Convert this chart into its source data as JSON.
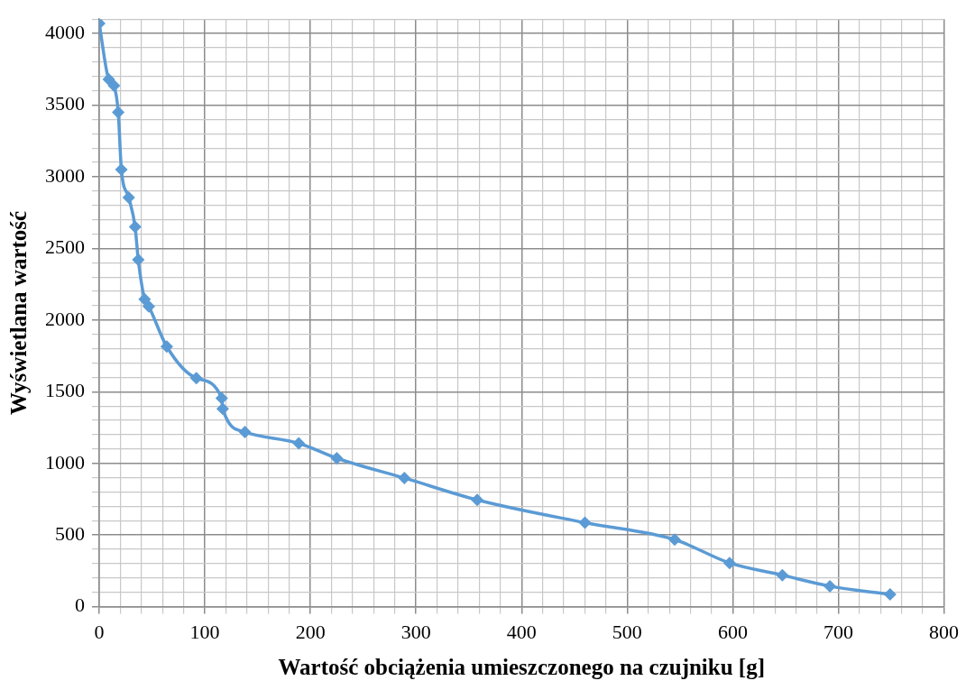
{
  "chart_data": {
    "type": "line",
    "xlabel": "Wartość obciążenia umieszczonego na czujniku [g]",
    "ylabel": "Wyświetlana wartość",
    "series": [
      {
        "color": "#5b9bd5",
        "x": [
          0,
          9,
          14,
          18,
          21,
          28,
          34,
          37,
          43,
          47,
          64,
          92,
          116,
          117,
          138,
          189,
          225,
          289,
          358,
          460,
          545,
          597,
          647,
          692,
          749
        ],
        "values": [
          4070,
          3680,
          3635,
          3450,
          3050,
          2855,
          2650,
          2420,
          2145,
          2095,
          1815,
          1595,
          1455,
          1380,
          1218,
          1140,
          1036,
          898,
          745,
          586,
          468,
          305,
          220,
          143,
          85
        ]
      }
    ],
    "xlim": [
      0,
      800
    ],
    "xticks": [
      0,
      {
        "value": 20,
        "label": null
      },
      {
        "value": 40,
        "label": null
      },
      {
        "value": 60,
        "label": null
      },
      {
        "value": 80,
        "label": null
      },
      100,
      {
        "value": 120,
        "label": null
      },
      {
        "value": 140,
        "label": null
      },
      {
        "value": 160,
        "label": null
      },
      {
        "value": 180,
        "label": null
      },
      200,
      {
        "value": 220,
        "label": null
      },
      {
        "value": 240,
        "label": null
      },
      {
        "value": 260,
        "label": null
      },
      {
        "value": 280,
        "label": null
      },
      300,
      {
        "value": 320,
        "label": null
      },
      {
        "value": 340,
        "label": null
      },
      {
        "value": 360,
        "label": null
      },
      {
        "value": 380,
        "label": null
      },
      400,
      {
        "value": 420,
        "label": null
      },
      {
        "value": 440,
        "label": null
      },
      {
        "value": 460,
        "label": null
      },
      {
        "value": 480,
        "label": null
      },
      500,
      {
        "value": 520,
        "label": null
      },
      {
        "value": 540,
        "label": null
      },
      {
        "value": 560,
        "label": null
      },
      {
        "value": 580,
        "label": null
      },
      600,
      {
        "value": 620,
        "label": null
      },
      {
        "value": 640,
        "label": null
      },
      {
        "value": 660,
        "label": null
      },
      {
        "value": 680,
        "label": null
      },
      700,
      {
        "value": 720,
        "label": null
      },
      {
        "value": 740,
        "label": null
      },
      {
        "value": 760,
        "label": null
      },
      {
        "value": 780,
        "label": null
      },
      800
    ],
    "ylim": [
      0,
      4100
    ],
    "yticks": [
      0,
      {
        "value": 100,
        "label": null
      },
      {
        "value": 200,
        "label": null
      },
      {
        "value": 300,
        "label": null
      },
      {
        "value": 400,
        "label": null
      },
      500,
      {
        "value": 600,
        "label": null
      },
      {
        "value": 700,
        "label": null
      },
      {
        "value": 800,
        "label": null
      },
      {
        "value": 900,
        "label": null
      },
      1000,
      {
        "value": 1100,
        "label": null
      },
      {
        "value": 1200,
        "label": null
      },
      {
        "value": 1300,
        "label": null
      },
      {
        "value": 1400,
        "label": null
      },
      1500,
      {
        "value": 1600,
        "label": null
      },
      {
        "value": 1700,
        "label": null
      },
      {
        "value": 1800,
        "label": null
      },
      {
        "value": 1900,
        "label": null
      },
      2000,
      {
        "value": 2100,
        "label": null
      },
      {
        "value": 2200,
        "label": null
      },
      {
        "value": 2300,
        "label": null
      },
      {
        "value": 2400,
        "label": null
      },
      2500,
      {
        "value": 2600,
        "label": null
      },
      {
        "value": 2700,
        "label": null
      },
      {
        "value": 2800,
        "label": null
      },
      {
        "value": 2900,
        "label": null
      },
      3000,
      {
        "value": 3100,
        "label": null
      },
      {
        "value": 3200,
        "label": null
      },
      {
        "value": 3300,
        "label": null
      },
      {
        "value": 3400,
        "label": null
      },
      3500,
      {
        "value": 3600,
        "label": null
      },
      {
        "value": 3700,
        "label": null
      },
      {
        "value": 3800,
        "label": null
      },
      {
        "value": 3900,
        "label": null
      },
      4000,
      {
        "value": 4100,
        "label": null
      }
    ],
    "grid": true,
    "legend": false,
    "marker": "diamond",
    "line_style": "solid"
  }
}
